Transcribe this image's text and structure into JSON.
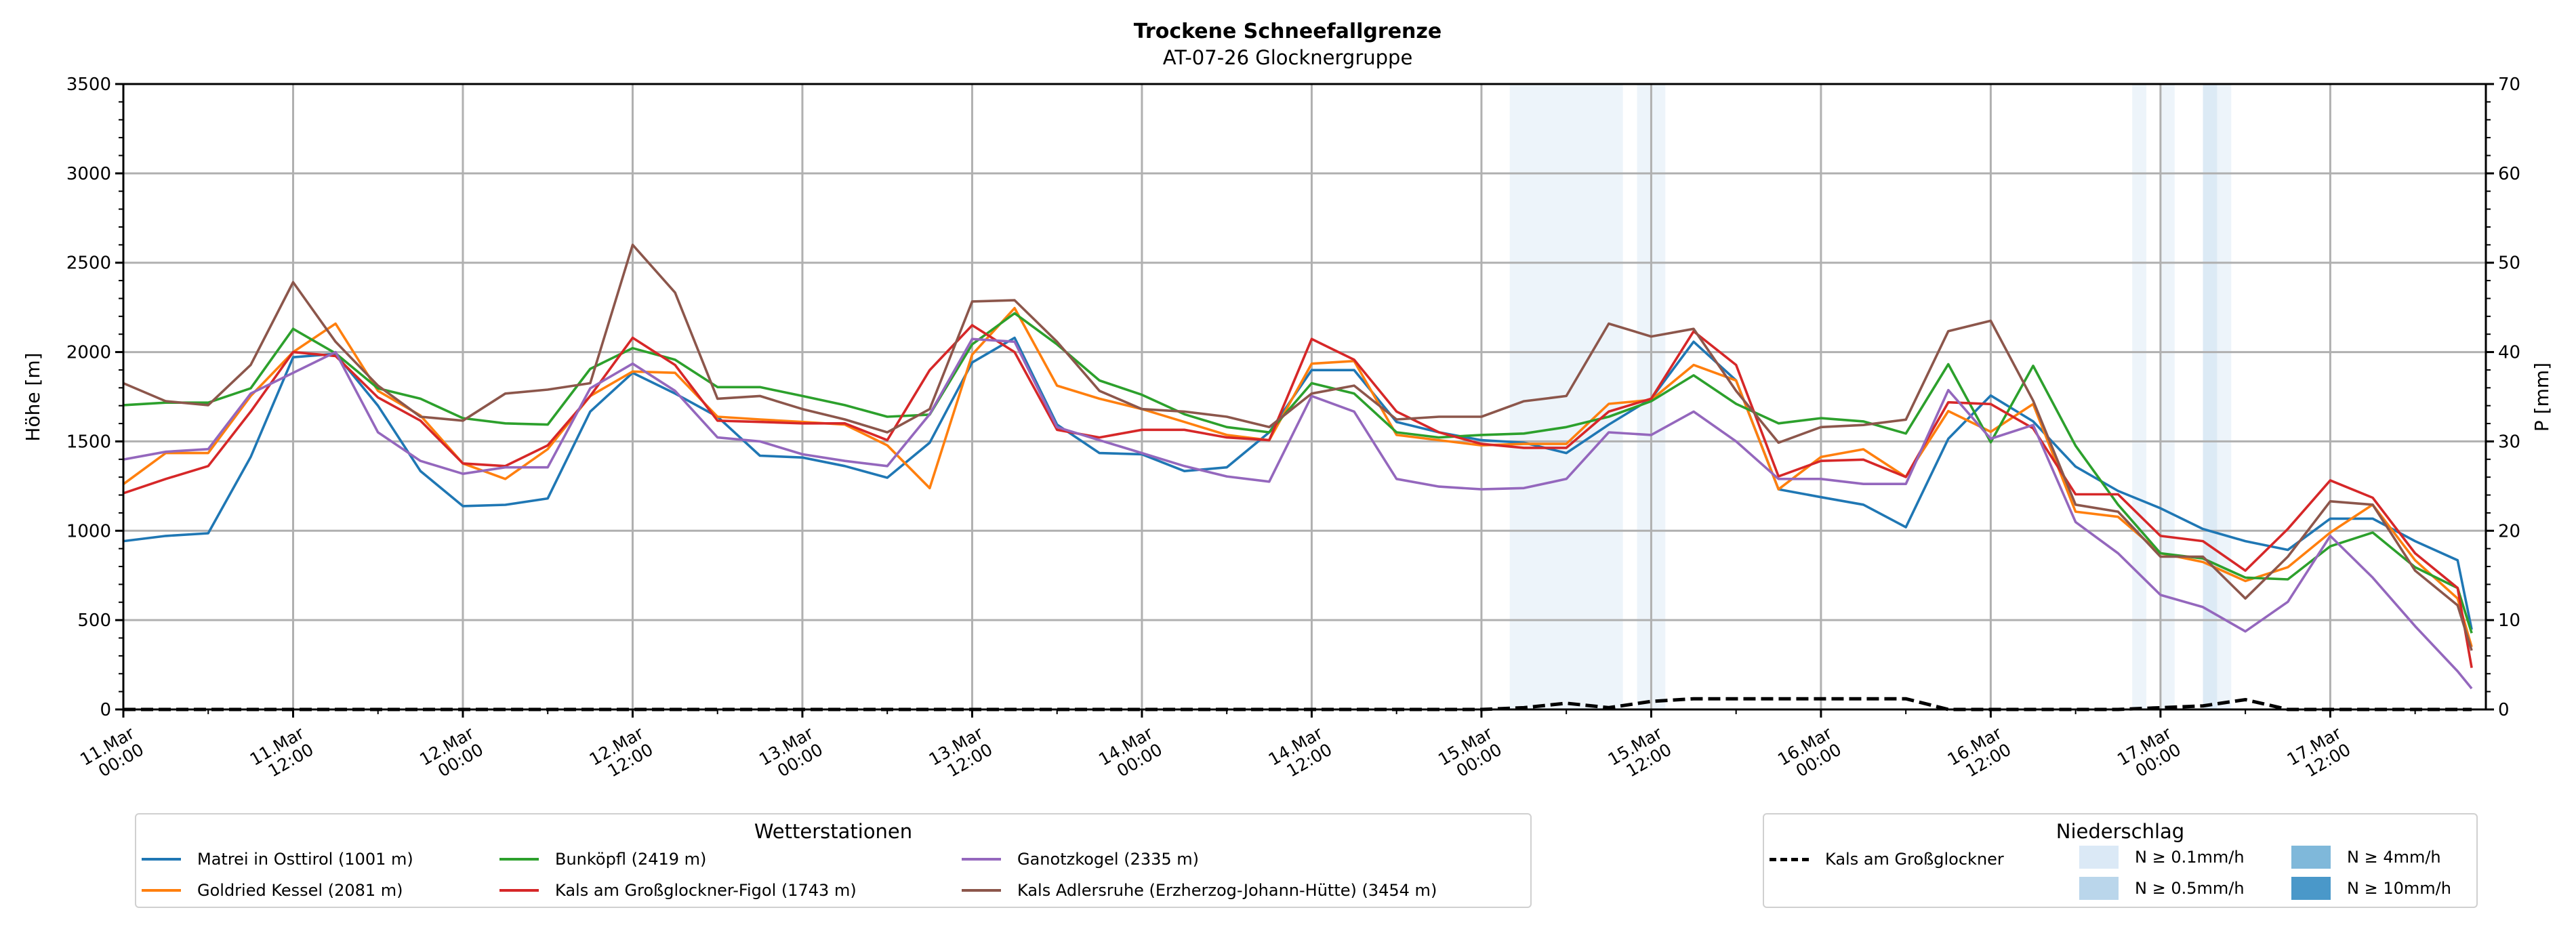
{
  "chart_data": {
    "type": "line",
    "title": "Trockene Schneefallgrenze",
    "subtitle": "AT-07-26 Glocknergruppe",
    "ylabel": "Höhe [m]",
    "y2label": "P [mm]",
    "ylim": [
      0,
      3500
    ],
    "y2lim": [
      0,
      70
    ],
    "yticks": [
      0,
      500,
      1000,
      1500,
      2000,
      2500,
      3000,
      3500
    ],
    "y2ticks": [
      0,
      10,
      20,
      30,
      40,
      50,
      60,
      70
    ],
    "grid": true,
    "x_unit": "hours since 11.Mar 00:00",
    "xlim_hours": [
      0,
      167
    ],
    "xticks": [
      {
        "hours": 0,
        "date": "11.Mar",
        "time": "00:00"
      },
      {
        "hours": 12,
        "date": "11.Mar",
        "time": "12:00"
      },
      {
        "hours": 24,
        "date": "12.Mar",
        "time": "00:00"
      },
      {
        "hours": 36,
        "date": "12.Mar",
        "time": "12:00"
      },
      {
        "hours": 48,
        "date": "13.Mar",
        "time": "00:00"
      },
      {
        "hours": 60,
        "date": "13.Mar",
        "time": "12:00"
      },
      {
        "hours": 72,
        "date": "14.Mar",
        "time": "00:00"
      },
      {
        "hours": 84,
        "date": "14.Mar",
        "time": "12:00"
      },
      {
        "hours": 96,
        "date": "15.Mar",
        "time": "00:00"
      },
      {
        "hours": 108,
        "date": "15.Mar",
        "time": "12:00"
      },
      {
        "hours": 120,
        "date": "16.Mar",
        "time": "00:00"
      },
      {
        "hours": 132,
        "date": "16.Mar",
        "time": "12:00"
      },
      {
        "hours": 144,
        "date": "17.Mar",
        "time": "00:00"
      },
      {
        "hours": 156,
        "date": "17.Mar",
        "time": "12:00"
      }
    ],
    "hours": [
      0,
      3,
      6,
      9,
      12,
      15,
      18,
      21,
      24,
      27,
      30,
      33,
      36,
      39,
      42,
      45,
      48,
      51,
      54,
      57,
      60,
      63,
      66,
      69,
      72,
      75,
      78,
      81,
      84,
      87,
      90,
      93,
      96,
      99,
      102,
      105,
      108,
      111,
      114,
      117,
      120,
      123,
      126,
      129,
      132,
      135,
      138,
      141,
      144,
      147,
      150,
      153,
      156,
      159,
      162,
      165,
      166
    ],
    "series": [
      {
        "name": "Matrei in Osttirol (1001 m)",
        "color": "#1f77b4",
        "values": [
          942,
          971,
          986,
          1413,
          1971,
          1990,
          1700,
          1334,
          1138,
          1145,
          1181,
          1667,
          1884,
          1768,
          1638,
          1420,
          1410,
          1362,
          1297,
          1493,
          1942,
          2080,
          1594,
          1435,
          1428,
          1334,
          1355,
          1551,
          1899,
          1899,
          1609,
          1551,
          1507,
          1493,
          1435,
          1594,
          1739,
          2058,
          1841,
          1232,
          1188,
          1146,
          1020,
          1515,
          1757,
          1612,
          1359,
          1223,
          1126,
          1010,
          942,
          893,
          1068,
          1068,
          942,
          835,
          447
        ]
      },
      {
        "name": "Goldried Kessel (2081 m)",
        "color": "#ff7f0e",
        "values": [
          1261,
          1435,
          1435,
          1754,
          2000,
          2159,
          1783,
          1645,
          1377,
          1290,
          1457,
          1754,
          1891,
          1884,
          1638,
          1623,
          1609,
          1594,
          1478,
          1239,
          1986,
          2246,
          1812,
          1739,
          1681,
          1609,
          1536,
          1507,
          1935,
          1950,
          1536,
          1507,
          1478,
          1486,
          1486,
          1710,
          1732,
          1928,
          1841,
          1232,
          1413,
          1456,
          1301,
          1670,
          1554,
          1709,
          1107,
          1078,
          874,
          825,
          719,
          796,
          990,
          1146,
          835,
          621,
          350
        ]
      },
      {
        "name": "Bunköpfl (2419 m)",
        "color": "#2ca02c",
        "values": [
          1703,
          1717,
          1717,
          1797,
          2130,
          1993,
          1797,
          1739,
          1630,
          1601,
          1594,
          1906,
          2022,
          1957,
          1804,
          1804,
          1754,
          1703,
          1638,
          1650,
          2043,
          2217,
          2043,
          1841,
          1761,
          1652,
          1580,
          1551,
          1826,
          1768,
          1551,
          1522,
          1536,
          1544,
          1580,
          1638,
          1725,
          1870,
          1710,
          1601,
          1630,
          1612,
          1544,
          1932,
          1495,
          1923,
          1476,
          1146,
          874,
          845,
          738,
          728,
          913,
          990,
          796,
          680,
          427
        ]
      },
      {
        "name": "Kals am Großglockner-Figol (1743 m)",
        "color": "#d62728",
        "values": [
          1210,
          1290,
          1362,
          1667,
          2000,
          1978,
          1746,
          1616,
          1377,
          1362,
          1478,
          1754,
          2080,
          1928,
          1616,
          1609,
          1601,
          1601,
          1507,
          1899,
          2150,
          2000,
          1565,
          1522,
          1565,
          1565,
          1522,
          1507,
          2073,
          1957,
          1667,
          1551,
          1486,
          1464,
          1464,
          1667,
          1739,
          2116,
          1928,
          1304,
          1391,
          1398,
          1301,
          1719,
          1709,
          1573,
          1204,
          1204,
          971,
          942,
          777,
          1010,
          1282,
          1185,
          874,
          680,
          233
        ]
      },
      {
        "name": "Ganotzkogel (2335 m)",
        "color": "#9467bd",
        "values": [
          1399,
          1442,
          1457,
          1768,
          1884,
          2000,
          1551,
          1391,
          1319,
          1355,
          1355,
          1797,
          1935,
          1783,
          1522,
          1500,
          1428,
          1391,
          1362,
          1652,
          2073,
          2058,
          1580,
          1507,
          1435,
          1362,
          1304,
          1275,
          1754,
          1667,
          1290,
          1247,
          1232,
          1239,
          1290,
          1551,
          1536,
          1667,
          1500,
          1290,
          1290,
          1262,
          1262,
          1787,
          1515,
          1592,
          1049,
          874,
          641,
          573,
          437,
          602,
          971,
          738,
          466,
          214,
          117
        ]
      },
      {
        "name": "Kals Adlersruhe (Erzherzog-Johann-Hütte) (3454 m)",
        "color": "#8c564b",
        "values": [
          1826,
          1725,
          1703,
          1928,
          2391,
          2058,
          1812,
          1638,
          1616,
          1768,
          1790,
          1826,
          2600,
          2333,
          1739,
          1754,
          1681,
          1623,
          1551,
          1681,
          2283,
          2290,
          2058,
          1783,
          1681,
          1667,
          1638,
          1580,
          1768,
          1812,
          1623,
          1638,
          1638,
          1725,
          1754,
          2159,
          2087,
          2130,
          1783,
          1493,
          1580,
          1592,
          1622,
          2117,
          2175,
          1728,
          1146,
          1107,
          855,
          855,
          621,
          855,
          1165,
          1146,
          777,
          583,
          330
        ]
      }
    ],
    "precip_line": {
      "name": "Kals am Großglockner",
      "axis": "right",
      "unit": "mm",
      "color": "#000000",
      "values": [
        0,
        0,
        0,
        0,
        0,
        0,
        0,
        0,
        0,
        0,
        0,
        0,
        0,
        0,
        0,
        0,
        0,
        0,
        0,
        0,
        0,
        0,
        0,
        0,
        0,
        0,
        0,
        0,
        0,
        0,
        0,
        0,
        0,
        0.2,
        0.7,
        0.2,
        0.9,
        1.2,
        1.2,
        1.2,
        1.2,
        1.2,
        1.2,
        0,
        0,
        0,
        0,
        0,
        0.2,
        0.4,
        1.1,
        0,
        0,
        0,
        0,
        0,
        0
      ]
    },
    "precip_bands": [
      {
        "start": 98,
        "end": 106,
        "level": 0
      },
      {
        "start": 107,
        "end": 109,
        "level": 0
      },
      {
        "start": 142,
        "end": 143,
        "level": 0
      },
      {
        "start": 144,
        "end": 145,
        "level": 0
      },
      {
        "start": 147,
        "end": 148,
        "level": 1
      },
      {
        "start": 148,
        "end": 149,
        "level": 0
      }
    ],
    "legend_stations_title": "Wetterstationen",
    "legend_precip_title": "Niederschlag",
    "precip_levels": [
      {
        "label": "N ≥ 0.1mm/h",
        "color": "#dbe9f6"
      },
      {
        "label": "N ≥ 0.5mm/h",
        "color": "#bad6eb"
      },
      {
        "label": "N ≥ 4mm/h",
        "color": "#7fb8da"
      },
      {
        "label": "N ≥ 10mm/h",
        "color": "#4a98c9"
      }
    ]
  }
}
